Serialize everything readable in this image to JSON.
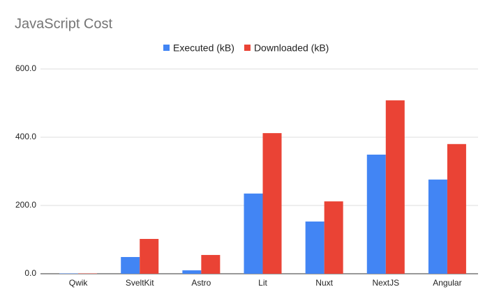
{
  "chart_data": {
    "type": "bar",
    "title": "JavaScript Cost",
    "categories": [
      "Qwik",
      "SveltKit",
      "Astro",
      "Lit",
      "Nuxt",
      "NextJS",
      "Angular"
    ],
    "series": [
      {
        "name": "Executed (kB)",
        "color": "#4285f4",
        "values": [
          1,
          49,
          10,
          235,
          153,
          349,
          276
        ]
      },
      {
        "name": "Downloaded (kB)",
        "color": "#ea4335",
        "values": [
          1,
          102,
          55,
          412,
          212,
          508,
          380
        ]
      }
    ],
    "ylim": [
      0,
      600
    ],
    "yticks": [
      {
        "value": 0,
        "label": "0.0"
      },
      {
        "value": 200,
        "label": "200.0"
      },
      {
        "value": 400,
        "label": "400.0"
      },
      {
        "value": 600,
        "label": "600.0"
      }
    ],
    "grid": true,
    "legend": "top"
  }
}
